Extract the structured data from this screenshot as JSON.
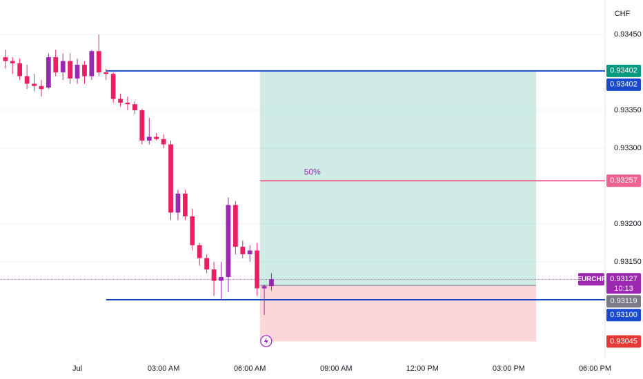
{
  "chart_data": {
    "type": "candlestick",
    "currency": "CHF",
    "symbol": "EURCHF",
    "countdown": "10:13",
    "bull_color": "#9c27b0",
    "bear_color": "#e91e63",
    "x": [
      -10,
      -9,
      -8,
      -7,
      -6,
      -5,
      -4,
      -3,
      -2,
      -1,
      0,
      1,
      2,
      3,
      4,
      5,
      6,
      7,
      8,
      9,
      10,
      11,
      12,
      13,
      14,
      15,
      16,
      17,
      18,
      19,
      20,
      21,
      22,
      23,
      24,
      25,
      26,
      27
    ],
    "open": [
      0.9342,
      0.93415,
      0.93412,
      0.93395,
      0.93385,
      0.93382,
      0.9338,
      0.9342,
      0.934,
      0.93415,
      0.93392,
      0.9341,
      0.93395,
      0.93428,
      0.934,
      0.93398,
      0.93365,
      0.9336,
      0.93358,
      0.9335,
      0.9331,
      0.93315,
      0.93312,
      0.93305,
      0.93215,
      0.9324,
      0.9321,
      0.93172,
      0.93155,
      0.9314,
      0.93125,
      0.9313,
      0.93225,
      0.9317,
      0.9316,
      0.93165,
      0.93115,
      0.93118
    ],
    "high": [
      0.9343,
      0.9342,
      0.93418,
      0.9341,
      0.93398,
      0.9339,
      0.93425,
      0.9343,
      0.93425,
      0.93425,
      0.93418,
      0.93415,
      0.9343,
      0.9345,
      0.93405,
      0.934,
      0.93372,
      0.93368,
      0.93362,
      0.93352,
      0.9334,
      0.9332,
      0.93318,
      0.9331,
      0.93245,
      0.93245,
      0.9322,
      0.93175,
      0.9316,
      0.9315,
      0.9315,
      0.93235,
      0.9323,
      0.93178,
      0.93172,
      0.93175,
      0.9312,
      0.93135
    ],
    "low": [
      0.93405,
      0.93398,
      0.9339,
      0.93378,
      0.93375,
      0.93368,
      0.93378,
      0.93395,
      0.9339,
      0.93385,
      0.93385,
      0.93385,
      0.9339,
      0.93395,
      0.9339,
      0.9336,
      0.93355,
      0.9335,
      0.93345,
      0.93305,
      0.93305,
      0.9331,
      0.933,
      0.93205,
      0.93205,
      0.93205,
      0.93165,
      0.93145,
      0.93135,
      0.93105,
      0.931,
      0.9311,
      0.9316,
      0.93155,
      0.9315,
      0.93105,
      0.9308,
      0.93112
    ],
    "close": [
      0.93415,
      0.93412,
      0.93395,
      0.93385,
      0.93382,
      0.93378,
      0.9342,
      0.934,
      0.93415,
      0.93392,
      0.9341,
      0.93395,
      0.93428,
      0.934,
      0.93398,
      0.93365,
      0.9336,
      0.93358,
      0.9335,
      0.9331,
      0.93315,
      0.93312,
      0.93305,
      0.93215,
      0.9324,
      0.9321,
      0.93172,
      0.93155,
      0.9314,
      0.93125,
      0.9313,
      0.93225,
      0.9317,
      0.9316,
      0.93165,
      0.93115,
      0.93118,
      0.93127
    ],
    "xlim": [
      -10.75,
      73.2
    ],
    "ylim": [
      0.930227,
      0.934955
    ],
    "xticks": [
      {
        "value": 0,
        "label": "Jul"
      },
      {
        "value": 12,
        "label": "03:00 AM"
      },
      {
        "value": 24,
        "label": "06:00 AM"
      },
      {
        "value": 36,
        "label": "09:00 AM"
      },
      {
        "value": 48,
        "label": "12:00 PM"
      },
      {
        "value": 60,
        "label": "03:00 PM"
      },
      {
        "value": 72,
        "label": "06:00 PM"
      }
    ],
    "yticks": [
      {
        "value": 0.9345,
        "label": "0.93450"
      },
      {
        "value": 0.9335,
        "label": "0.93350"
      },
      {
        "value": 0.933,
        "label": "0.93300"
      },
      {
        "value": 0.932,
        "label": "0.93200"
      },
      {
        "value": 0.9315,
        "label": "0.93150"
      }
    ],
    "levels": [
      {
        "value": 0.93402,
        "start": 4,
        "color": "#1848cc"
      },
      {
        "value": 0.931,
        "start": 4,
        "color": "#1848cc"
      }
    ],
    "position": {
      "start": 25.4,
      "end": 63.8,
      "entry": 0.93119,
      "target": 0.93402,
      "stop": 0.93045,
      "midline": 0.93257,
      "midline_label": "50%"
    },
    "price_labels": [
      {
        "value": 0.93402,
        "label": "0.93402",
        "color": "#089981"
      },
      {
        "value": 0.93402,
        "label": "0.93402",
        "color": "#1848cc"
      },
      {
        "value": 0.93257,
        "label": "0.93257",
        "color": "#f06292"
      },
      {
        "value": 0.93127,
        "label": "0.93127",
        "color": "#9c27b0"
      },
      {
        "value": 0.93119,
        "label": "0.93119",
        "color": "#787b86"
      },
      {
        "value": 0.931,
        "label": "0.93100",
        "color": "#1848cc"
      },
      {
        "value": 0.93045,
        "label": "0.93045",
        "color": "#e53935"
      }
    ]
  }
}
